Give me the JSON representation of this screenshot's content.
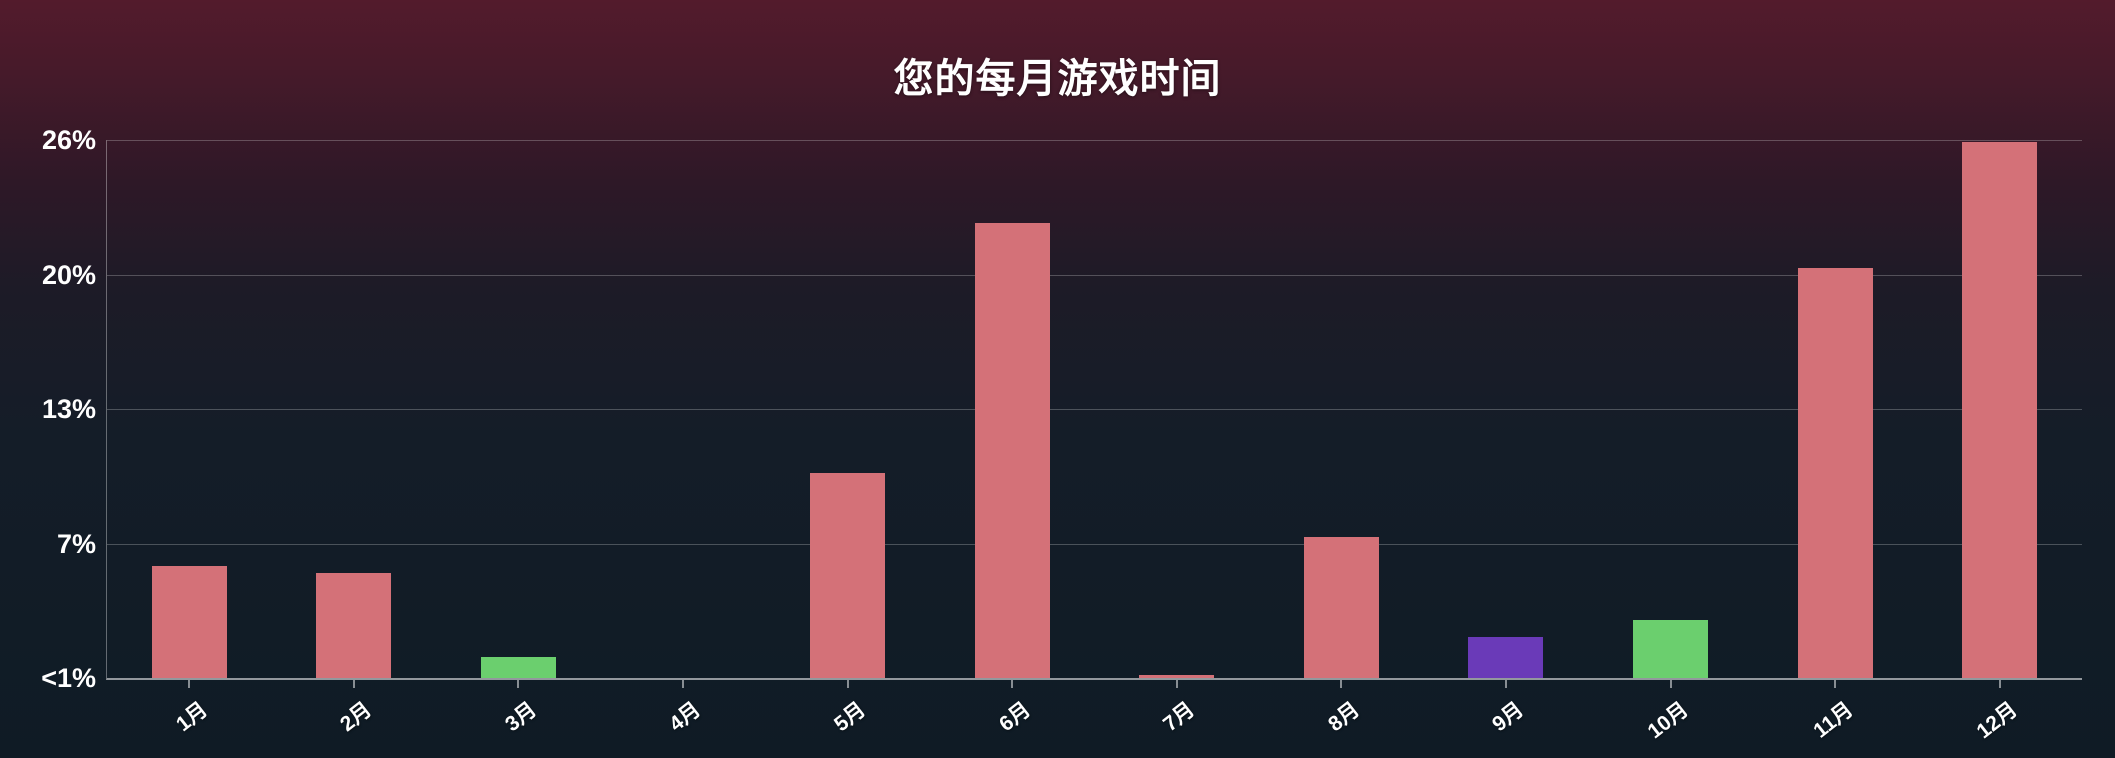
{
  "page": {
    "background_top": "#531b2c",
    "background_bottom": "#0f1b25"
  },
  "chart_data": {
    "type": "bar",
    "title": "您的每月游戏时间",
    "xlabel": "",
    "ylabel": "",
    "categories": [
      "1月",
      "2月",
      "3月",
      "4月",
      "5月",
      "6月",
      "7月",
      "8月",
      "9月",
      "10月",
      "11月",
      "12月"
    ],
    "values": [
      5.4,
      5.1,
      1.0,
      0,
      9.9,
      22.0,
      0.15,
      6.8,
      2.0,
      2.8,
      19.8,
      25.9
    ],
    "bar_colors": [
      "#d47178",
      "#d47178",
      "#6bcf6e",
      "#d47178",
      "#d47178",
      "#d47178",
      "#d47178",
      "#d47178",
      "#6a3ab8",
      "#6bcf6e",
      "#d47178",
      "#d47178"
    ],
    "ylim": [
      0,
      26
    ],
    "yticks": [
      {
        "value": 0,
        "label": "<1%"
      },
      {
        "value": 6.5,
        "label": "7%"
      },
      {
        "value": 13,
        "label": "13%"
      },
      {
        "value": 19.5,
        "label": "20%"
      },
      {
        "value": 26,
        "label": "26%"
      }
    ],
    "grid": true,
    "legend": "none",
    "colors": {
      "bar_default": "#d47178",
      "bar_green": "#6bcf6e",
      "bar_purple": "#6a3ab8",
      "grid": "rgba(255,255,255,0.24)",
      "axis": "rgba(255,255,255,0.55)",
      "text": "#ffffff"
    }
  }
}
